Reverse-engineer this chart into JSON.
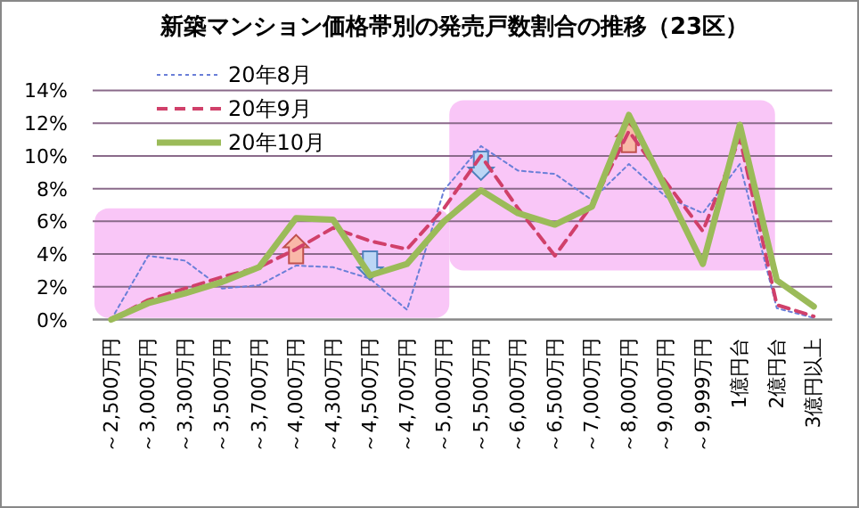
{
  "chart_data": {
    "type": "line",
    "title": "新築マンション価格帯別の発売戸数割合の推移（23区）",
    "categories": [
      "～2,500万円",
      "～3,000万円",
      "～3,300万円",
      "～3,500万円",
      "～3,700万円",
      "～4,000万円",
      "～4,300万円",
      "～4,500万円",
      "～4,700万円",
      "～5,000万円",
      "～5,500万円",
      "～6,000万円",
      "～6,500万円",
      "～7,000万円",
      "～8,000万円",
      "～9,000万円",
      "～9,999万円",
      "1億円台",
      "2億円台",
      "3億円以上"
    ],
    "series": [
      {
        "name": "20年8月",
        "color": "#6a7fd8",
        "line_style": "dotted",
        "values": [
          0,
          3.9,
          3.6,
          1.9,
          2.1,
          3.3,
          3.2,
          2.5,
          0.6,
          7.9,
          10.6,
          9.1,
          8.9,
          7.3,
          9.5,
          7.5,
          6.5,
          9.5,
          0.7,
          0.1
        ]
      },
      {
        "name": "20年9月",
        "color": "#d0406a",
        "line_style": "dashed",
        "values": [
          0,
          1.2,
          1.9,
          2.6,
          3.2,
          4.3,
          5.6,
          4.8,
          4.3,
          6.8,
          10.0,
          6.8,
          3.9,
          7.0,
          11.5,
          8.4,
          5.4,
          11.1,
          0.9,
          0.2
        ]
      },
      {
        "name": "20年10月",
        "color": "#9bbb59",
        "line_style": "solid",
        "values": [
          0,
          1.0,
          1.6,
          2.3,
          3.2,
          6.2,
          6.1,
          2.7,
          3.4,
          6.0,
          7.9,
          6.5,
          5.8,
          6.9,
          12.5,
          8.0,
          3.4,
          11.9,
          2.4,
          0.8
        ]
      }
    ],
    "ylim": [
      0,
      14
    ],
    "yticks": [
      {
        "value": 0,
        "label": "0%"
      },
      {
        "value": 2,
        "label": "2%"
      },
      {
        "value": 4,
        "label": "4%"
      },
      {
        "value": 6,
        "label": "6%"
      },
      {
        "value": 8,
        "label": "8%"
      },
      {
        "value": 10,
        "label": "10%"
      },
      {
        "value": 12,
        "label": "12%"
      },
      {
        "value": 14,
        "label": "14%"
      }
    ],
    "grid": "y",
    "legend": "top left",
    "marker": "none"
  }
}
